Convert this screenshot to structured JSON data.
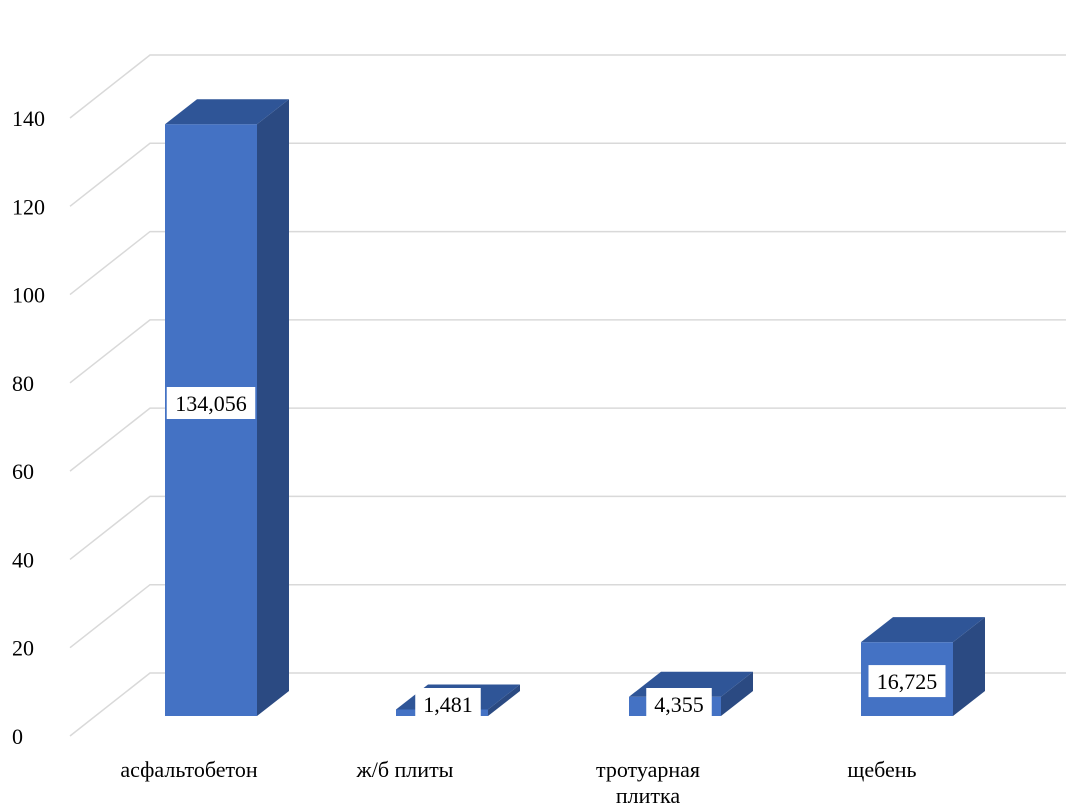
{
  "chart_data": {
    "type": "bar",
    "title": "",
    "xlabel": "",
    "ylabel": "",
    "categories": [
      "асфальтобетон",
      "ж/б плиты",
      "тротуарная плитка",
      "щебень"
    ],
    "category_lines": [
      [
        "асфальтобетон"
      ],
      [
        "ж/б плиты"
      ],
      [
        "тротуарная",
        "плитка"
      ],
      [
        "щебень"
      ]
    ],
    "values": [
      134.056,
      1.481,
      4.355,
      16.725
    ],
    "data_labels": [
      "134,056",
      "1,481",
      "4,355",
      "16,725"
    ],
    "ylim": [
      0,
      140
    ],
    "yticks": [
      0,
      20,
      40,
      60,
      80,
      100,
      120,
      140
    ],
    "grid": true,
    "legend": "none",
    "three_d": true,
    "colors": {
      "bar_front": "#4472c4",
      "bar_side": "#2b4a82",
      "bar_top": "#2f5597",
      "grid": "#d9d9d9",
      "label_bg": "#ffffff"
    }
  }
}
